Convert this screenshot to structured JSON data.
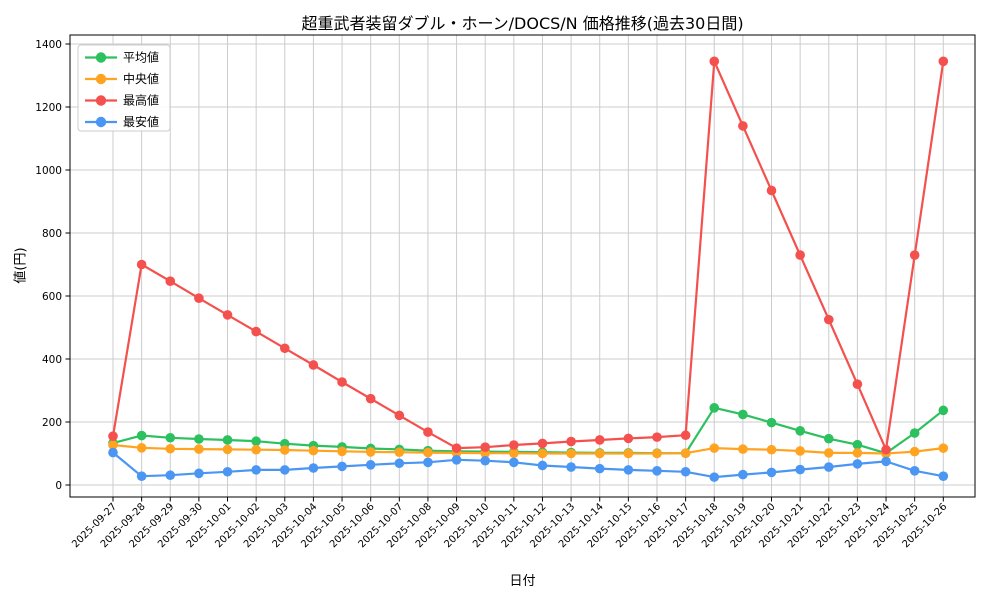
{
  "chart_data": {
    "type": "line",
    "title": "超重武者装留ダブル・ホーン/DOCS/N 価格推移(過去30日間)",
    "xlabel": "日付",
    "ylabel": "値(円)",
    "ylim": [
      0,
      1400
    ],
    "yticks": [
      0,
      200,
      400,
      600,
      800,
      1000,
      1200,
      1400
    ],
    "grid": true,
    "legend_position": "upper left",
    "categories": [
      "2025-09-27",
      "2025-09-28",
      "2025-09-29",
      "2025-09-30",
      "2025-10-01",
      "2025-10-02",
      "2025-10-03",
      "2025-10-04",
      "2025-10-05",
      "2025-10-06",
      "2025-10-07",
      "2025-10-08",
      "2025-10-09",
      "2025-10-10",
      "2025-10-11",
      "2025-10-12",
      "2025-10-13",
      "2025-10-14",
      "2025-10-15",
      "2025-10-16",
      "2025-10-17",
      "2025-10-18",
      "2025-10-19",
      "2025-10-20",
      "2025-10-21",
      "2025-10-22",
      "2025-10-23",
      "2025-10-24",
      "2025-10-25",
      "2025-10-26"
    ],
    "series": [
      {
        "name": "平均値",
        "color": "#2dc05e",
        "values": [
          133,
          157,
          150,
          146,
          143,
          139,
          131,
          125,
          121,
          116,
          113,
          109,
          107,
          106,
          105,
          104,
          103,
          102,
          102,
          101,
          101,
          245,
          224,
          198,
          172,
          147,
          128,
          101,
          165,
          237
        ]
      },
      {
        "name": "中央値",
        "color": "#ffa320",
        "values": [
          127,
          118,
          115,
          114,
          113,
          112,
          111,
          109,
          107,
          105,
          104,
          103,
          102,
          101,
          101,
          100,
          100,
          100,
          100,
          100,
          101,
          117,
          114,
          112,
          108,
          102,
          102,
          100,
          106,
          117
        ]
      },
      {
        "name": "最高値",
        "color": "#f4504e",
        "values": [
          155,
          700,
          647,
          593,
          540,
          487,
          434,
          381,
          327,
          274,
          221,
          168,
          117,
          120,
          127,
          132,
          138,
          143,
          148,
          152,
          158,
          1345,
          1140,
          935,
          730,
          525,
          320,
          112,
          730,
          1345
        ]
      },
      {
        "name": "最安値",
        "color": "#4b96f3",
        "values": [
          103,
          28,
          31,
          37,
          42,
          48,
          48,
          54,
          59,
          64,
          69,
          72,
          80,
          77,
          72,
          62,
          57,
          52,
          48,
          45,
          42,
          25,
          33,
          40,
          49,
          57,
          67,
          75,
          45,
          28
        ]
      }
    ]
  }
}
